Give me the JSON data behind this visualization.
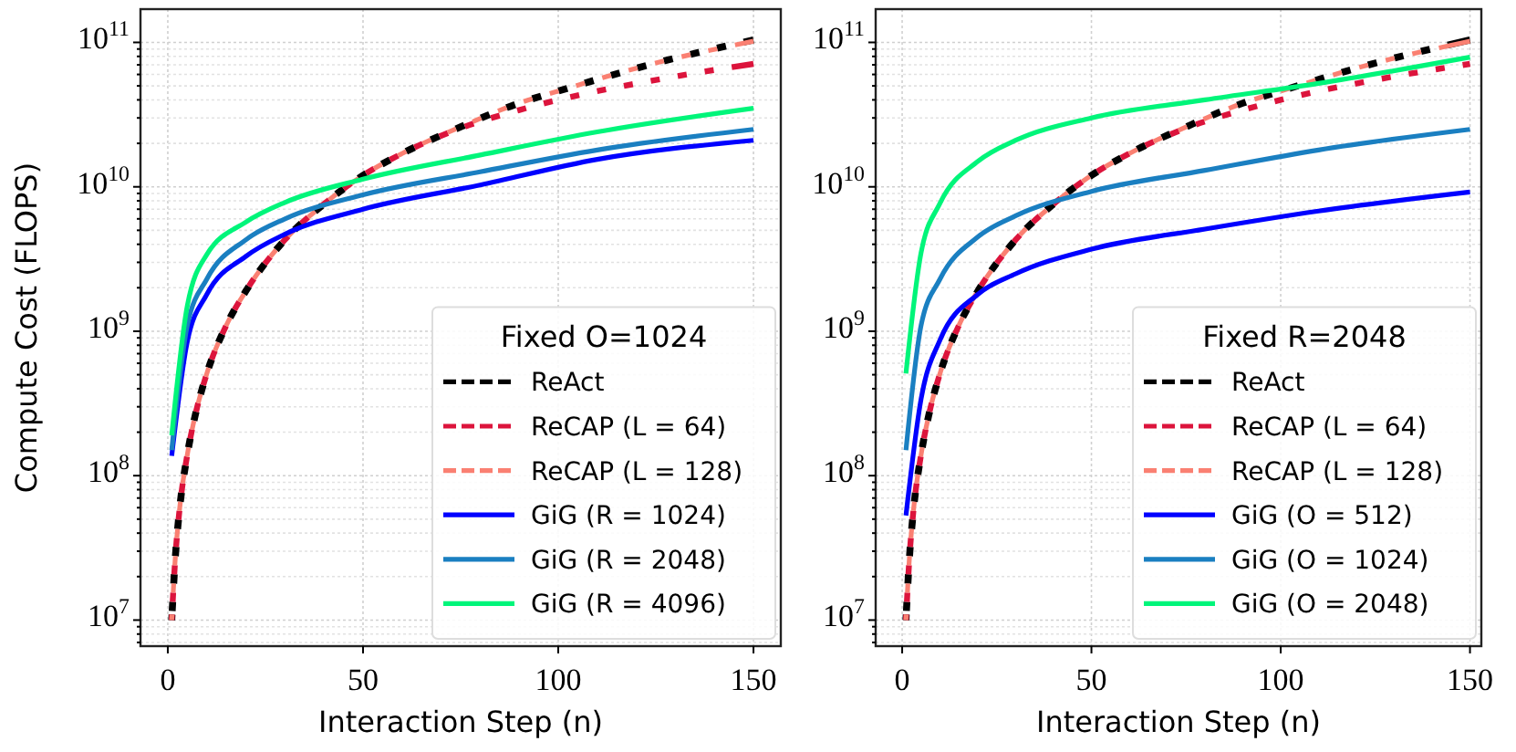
{
  "chart_data": [
    {
      "type": "line",
      "legend_title": "Fixed O=1024",
      "xlabel": "Interaction Step (n)",
      "ylabel": "Compute Cost (FLOPS)",
      "log": "y",
      "grid": true,
      "legend": "bottom right",
      "marker": "none",
      "xlim": [
        -7,
        157
      ],
      "xticks": [
        0,
        50,
        100,
        150
      ],
      "ylim": [
        6600000,
        170000000000
      ],
      "yticks": [
        {
          "value": 7000000,
          "label": null
        },
        {
          "value": 8000000,
          "label": null
        },
        {
          "value": 9000000,
          "label": null
        },
        {
          "value": 10000000,
          "label": "10$^{7}$"
        },
        {
          "value": 20000000,
          "label": null
        },
        {
          "value": 30000000,
          "label": null
        },
        {
          "value": 40000000,
          "label": null
        },
        {
          "value": 50000000,
          "label": null
        },
        {
          "value": 60000000,
          "label": null
        },
        {
          "value": 70000000,
          "label": null
        },
        {
          "value": 80000000,
          "label": null
        },
        {
          "value": 90000000,
          "label": null
        },
        {
          "value": 100000000,
          "label": "10$^{8}$"
        },
        {
          "value": 200000000,
          "label": null
        },
        {
          "value": 300000000,
          "label": null
        },
        {
          "value": 400000000,
          "label": null
        },
        {
          "value": 500000000,
          "label": null
        },
        {
          "value": 600000000,
          "label": null
        },
        {
          "value": 700000000,
          "label": null
        },
        {
          "value": 800000000,
          "label": null
        },
        {
          "value": 900000000,
          "label": null
        },
        {
          "value": 1000000000,
          "label": "10$^{9}$"
        },
        {
          "value": 2000000000,
          "label": null
        },
        {
          "value": 3000000000,
          "label": null
        },
        {
          "value": 4000000000,
          "label": null
        },
        {
          "value": 5000000000,
          "label": null
        },
        {
          "value": 6000000000,
          "label": null
        },
        {
          "value": 7000000000,
          "label": null
        },
        {
          "value": 8000000000,
          "label": null
        },
        {
          "value": 9000000000,
          "label": null
        },
        {
          "value": 10000000000,
          "label": "10$^{10}$"
        },
        {
          "value": 20000000000,
          "label": null
        },
        {
          "value": 30000000000,
          "label": null
        },
        {
          "value": 40000000000,
          "label": null
        },
        {
          "value": 50000000000,
          "label": null
        },
        {
          "value": 60000000000,
          "label": null
        },
        {
          "value": 70000000000,
          "label": null
        },
        {
          "value": 80000000000,
          "label": null
        },
        {
          "value": 90000000000,
          "label": null
        },
        {
          "value": 100000000000,
          "label": "10$^{11}$"
        }
      ],
      "series": [
        {
          "name": "ReAct",
          "color": "#000000",
          "line_style": "dashed",
          "x": [
            1,
            2,
            3,
            5,
            7,
            10,
            15,
            20,
            30,
            40,
            50,
            60,
            75,
            90,
            100,
            125,
            150
          ],
          "values": [
            10000000,
            29000000,
            58000000,
            140000000,
            260000000,
            510000000,
            1100000000,
            1900000000,
            4300000000,
            7600000000,
            12000000000,
            17000000000,
            26000000000,
            38000000000,
            46000000000,
            72000000000,
            104000000000
          ]
        },
        {
          "name": "ReCAP (L = 64)",
          "color": "#dc143c",
          "line_style": "dashed",
          "x": [
            1,
            2,
            3,
            5,
            7,
            10,
            15,
            20,
            30,
            40,
            50,
            60,
            75,
            90,
            100,
            125,
            150
          ],
          "values": [
            10000000,
            29000000,
            58000000,
            140000000,
            260000000,
            510000000,
            1100000000,
            1900000000,
            4300000000,
            7600000000,
            12000000000,
            17000000000,
            25500000000,
            34000000000,
            40000000000,
            55000000000,
            71000000000
          ]
        },
        {
          "name": "ReCAP (L = 128)",
          "color": "#fa8072",
          "line_style": "dashed",
          "x": [
            1,
            2,
            3,
            5,
            7,
            10,
            15,
            20,
            30,
            40,
            50,
            60,
            75,
            90,
            100,
            125,
            150
          ],
          "values": [
            10000000,
            29000000,
            58000000,
            140000000,
            260000000,
            510000000,
            1100000000,
            1900000000,
            4300000000,
            7600000000,
            12000000000,
            17000000000,
            26000000000,
            38000000000,
            46000000000,
            72000000000,
            102000000000
          ]
        },
        {
          "name": "GiG (R = 1024)",
          "color": "#0000ff",
          "line_style": "solid",
          "x": [
            1,
            5,
            10,
            20,
            30,
            50,
            80,
            110,
            150
          ],
          "values": [
            137000000,
            850000000,
            1800000000,
            3300000000,
            4700000000,
            7000000000,
            10300000000,
            15500000000,
            21000000000
          ]
        },
        {
          "name": "GiG (R = 2048)",
          "color": "#1a7fc1",
          "line_style": "solid",
          "x": [
            1,
            5,
            10,
            20,
            30,
            50,
            80,
            110,
            150
          ],
          "values": [
            150000000,
            1100000000,
            2300000000,
            4300000000,
            6000000000,
            8800000000,
            12700000000,
            18000000000,
            25000000000
          ]
        },
        {
          "name": "GiG (R = 4096)",
          "color": "#00f57a",
          "line_style": "solid",
          "x": [
            1,
            5,
            10,
            20,
            30,
            50,
            80,
            110,
            150
          ],
          "values": [
            190000000,
            1500000000,
            3400000000,
            5700000000,
            7800000000,
            11300000000,
            16600000000,
            24000000000,
            35000000000
          ]
        }
      ]
    },
    {
      "type": "line",
      "legend_title": "Fixed R=2048",
      "xlabel": "Interaction Step (n)",
      "log": "y",
      "grid": true,
      "legend": "bottom right",
      "marker": "none",
      "xlim": [
        -7,
        153
      ],
      "xticks": [
        0,
        50,
        100,
        150
      ],
      "ylim": [
        6600000,
        170000000000
      ],
      "yticks": [
        {
          "value": 7000000,
          "label": null
        },
        {
          "value": 8000000,
          "label": null
        },
        {
          "value": 9000000,
          "label": null
        },
        {
          "value": 10000000,
          "label": "10$^{7}$"
        },
        {
          "value": 20000000,
          "label": null
        },
        {
          "value": 30000000,
          "label": null
        },
        {
          "value": 40000000,
          "label": null
        },
        {
          "value": 50000000,
          "label": null
        },
        {
          "value": 60000000,
          "label": null
        },
        {
          "value": 70000000,
          "label": null
        },
        {
          "value": 80000000,
          "label": null
        },
        {
          "value": 90000000,
          "label": null
        },
        {
          "value": 100000000,
          "label": "10$^{8}$"
        },
        {
          "value": 200000000,
          "label": null
        },
        {
          "value": 300000000,
          "label": null
        },
        {
          "value": 400000000,
          "label": null
        },
        {
          "value": 500000000,
          "label": null
        },
        {
          "value": 600000000,
          "label": null
        },
        {
          "value": 700000000,
          "label": null
        },
        {
          "value": 800000000,
          "label": null
        },
        {
          "value": 900000000,
          "label": null
        },
        {
          "value": 1000000000,
          "label": "10$^{9}$"
        },
        {
          "value": 2000000000,
          "label": null
        },
        {
          "value": 3000000000,
          "label": null
        },
        {
          "value": 4000000000,
          "label": null
        },
        {
          "value": 5000000000,
          "label": null
        },
        {
          "value": 6000000000,
          "label": null
        },
        {
          "value": 7000000000,
          "label": null
        },
        {
          "value": 8000000000,
          "label": null
        },
        {
          "value": 9000000000,
          "label": null
        },
        {
          "value": 10000000000,
          "label": "10$^{10}$"
        },
        {
          "value": 20000000000,
          "label": null
        },
        {
          "value": 30000000000,
          "label": null
        },
        {
          "value": 40000000000,
          "label": null
        },
        {
          "value": 50000000000,
          "label": null
        },
        {
          "value": 60000000000,
          "label": null
        },
        {
          "value": 70000000000,
          "label": null
        },
        {
          "value": 80000000000,
          "label": null
        },
        {
          "value": 90000000000,
          "label": null
        },
        {
          "value": 100000000000,
          "label": "10$^{11}$"
        }
      ],
      "series": [
        {
          "name": "ReAct",
          "color": "#000000",
          "line_style": "dashed",
          "x": [
            1,
            2,
            3,
            5,
            7,
            10,
            15,
            20,
            30,
            40,
            50,
            60,
            75,
            90,
            100,
            125,
            150
          ],
          "values": [
            10000000,
            29000000,
            58000000,
            140000000,
            260000000,
            510000000,
            1100000000,
            1900000000,
            4300000000,
            7600000000,
            12000000000,
            17000000000,
            26000000000,
            38000000000,
            46000000000,
            72000000000,
            104000000000
          ]
        },
        {
          "name": "ReCAP (L = 64)",
          "color": "#dc143c",
          "line_style": "dashed",
          "x": [
            1,
            2,
            3,
            5,
            7,
            10,
            15,
            20,
            30,
            40,
            50,
            60,
            75,
            90,
            100,
            125,
            150
          ],
          "values": [
            10000000,
            29000000,
            58000000,
            140000000,
            260000000,
            510000000,
            1100000000,
            1900000000,
            4300000000,
            7600000000,
            12000000000,
            17000000000,
            25500000000,
            34000000000,
            40000000000,
            55000000000,
            71000000000
          ]
        },
        {
          "name": "ReCAP (L = 128)",
          "color": "#fa8072",
          "line_style": "dashed",
          "x": [
            1,
            2,
            3,
            5,
            7,
            10,
            15,
            20,
            30,
            40,
            50,
            60,
            75,
            90,
            100,
            125,
            150
          ],
          "values": [
            10000000,
            29000000,
            58000000,
            140000000,
            260000000,
            510000000,
            1100000000,
            1900000000,
            4300000000,
            7600000000,
            12000000000,
            17000000000,
            26000000000,
            38000000000,
            46000000000,
            72000000000,
            102000000000
          ]
        },
        {
          "name": "GiG (O = 512)",
          "color": "#0000ff",
          "line_style": "solid",
          "x": [
            1,
            5,
            10,
            20,
            30,
            50,
            80,
            110,
            150
          ],
          "values": [
            53000000,
            340000000,
            870000000,
            1800000000,
            2500000000,
            3700000000,
            5100000000,
            6800000000,
            9200000000
          ]
        },
        {
          "name": "GiG (O = 1024)",
          "color": "#1a7fc1",
          "line_style": "solid",
          "x": [
            1,
            5,
            10,
            20,
            30,
            50,
            80,
            110,
            150
          ],
          "values": [
            150000000,
            1100000000,
            2300000000,
            4500000000,
            6300000000,
            9300000000,
            13000000000,
            18000000000,
            25000000000
          ]
        },
        {
          "name": "GiG (O = 2048)",
          "color": "#00f57a",
          "line_style": "solid",
          "x": [
            1,
            5,
            10,
            20,
            30,
            50,
            80,
            110,
            150
          ],
          "values": [
            510000000,
            3500000000,
            7700000000,
            15000000000,
            21000000000,
            30000000000,
            40000000000,
            52000000000,
            79000000000
          ]
        }
      ]
    }
  ]
}
